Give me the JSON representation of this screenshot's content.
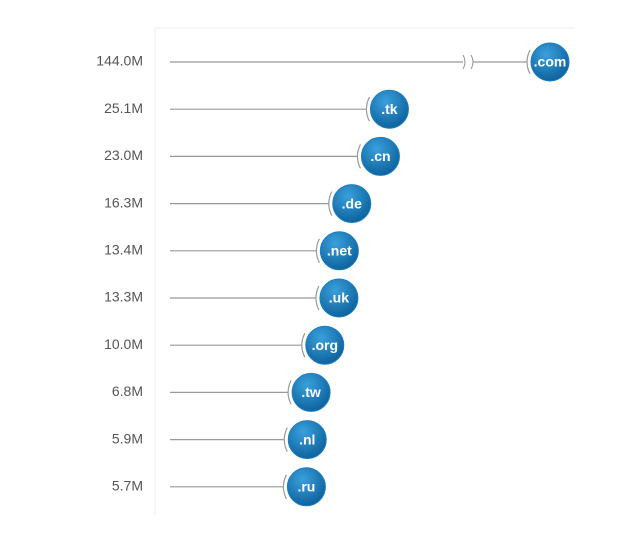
{
  "chart_data": {
    "type": "lollipop",
    "categories": [
      ".com",
      ".tk",
      ".cn",
      ".de",
      ".net",
      ".uk",
      ".org",
      ".tw",
      ".nl",
      ".ru"
    ],
    "values": [
      144.0,
      25.1,
      23.0,
      16.3,
      13.4,
      13.3,
      10.0,
      6.8,
      5.9,
      5.7
    ],
    "value_labels": [
      "144.0M",
      "25.1M",
      "23.0M",
      "16.3M",
      "13.4M",
      "13.3M",
      "10.0M",
      "6.8M",
      "5.9M",
      "5.7M"
    ],
    "color": "#1a7fc1",
    "broken_axis": true
  }
}
